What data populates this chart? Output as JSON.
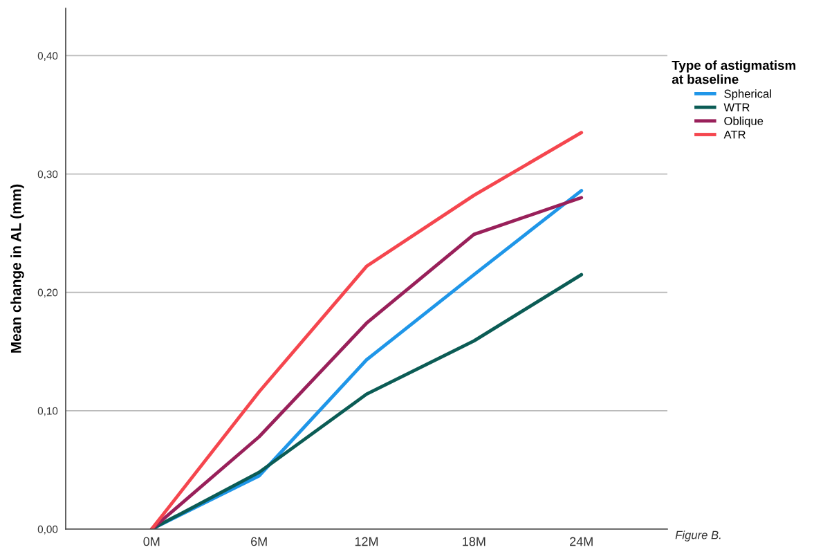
{
  "chart_data": {
    "type": "line",
    "ylabel": "Mean change in AL (mm)",
    "legend_title": "Type of astigmatism\nat baseline",
    "categories": [
      "0M",
      "6M",
      "12M",
      "18M",
      "24M"
    ],
    "series": [
      {
        "name": "Spherical",
        "color": "#1f96e8",
        "values": [
          0,
          0.045,
          0.143,
          0.215,
          0.286
        ]
      },
      {
        "name": "WTR",
        "color": "#0b5c55",
        "values": [
          0,
          0.048,
          0.114,
          0.159,
          0.215
        ]
      },
      {
        "name": "Oblique",
        "color": "#99205a",
        "values": [
          0,
          0.078,
          0.174,
          0.249,
          0.28
        ]
      },
      {
        "name": "ATR",
        "color": "#f5464e",
        "values": [
          0,
          0.116,
          0.222,
          0.282,
          0.335
        ]
      }
    ],
    "ylim": [
      0,
      0.44
    ],
    "yticks": [
      {
        "value": 0,
        "label": "0,00"
      },
      {
        "value": 0.1,
        "label": "0,10"
      },
      {
        "value": 0.2,
        "label": "0,20"
      },
      {
        "value": 0.3,
        "label": "0,30"
      },
      {
        "value": 0.4,
        "label": "0,40"
      }
    ],
    "grid": "y",
    "legend": "right",
    "marker": "none",
    "line_style": "solid",
    "annotations": [
      "Figure B."
    ]
  }
}
